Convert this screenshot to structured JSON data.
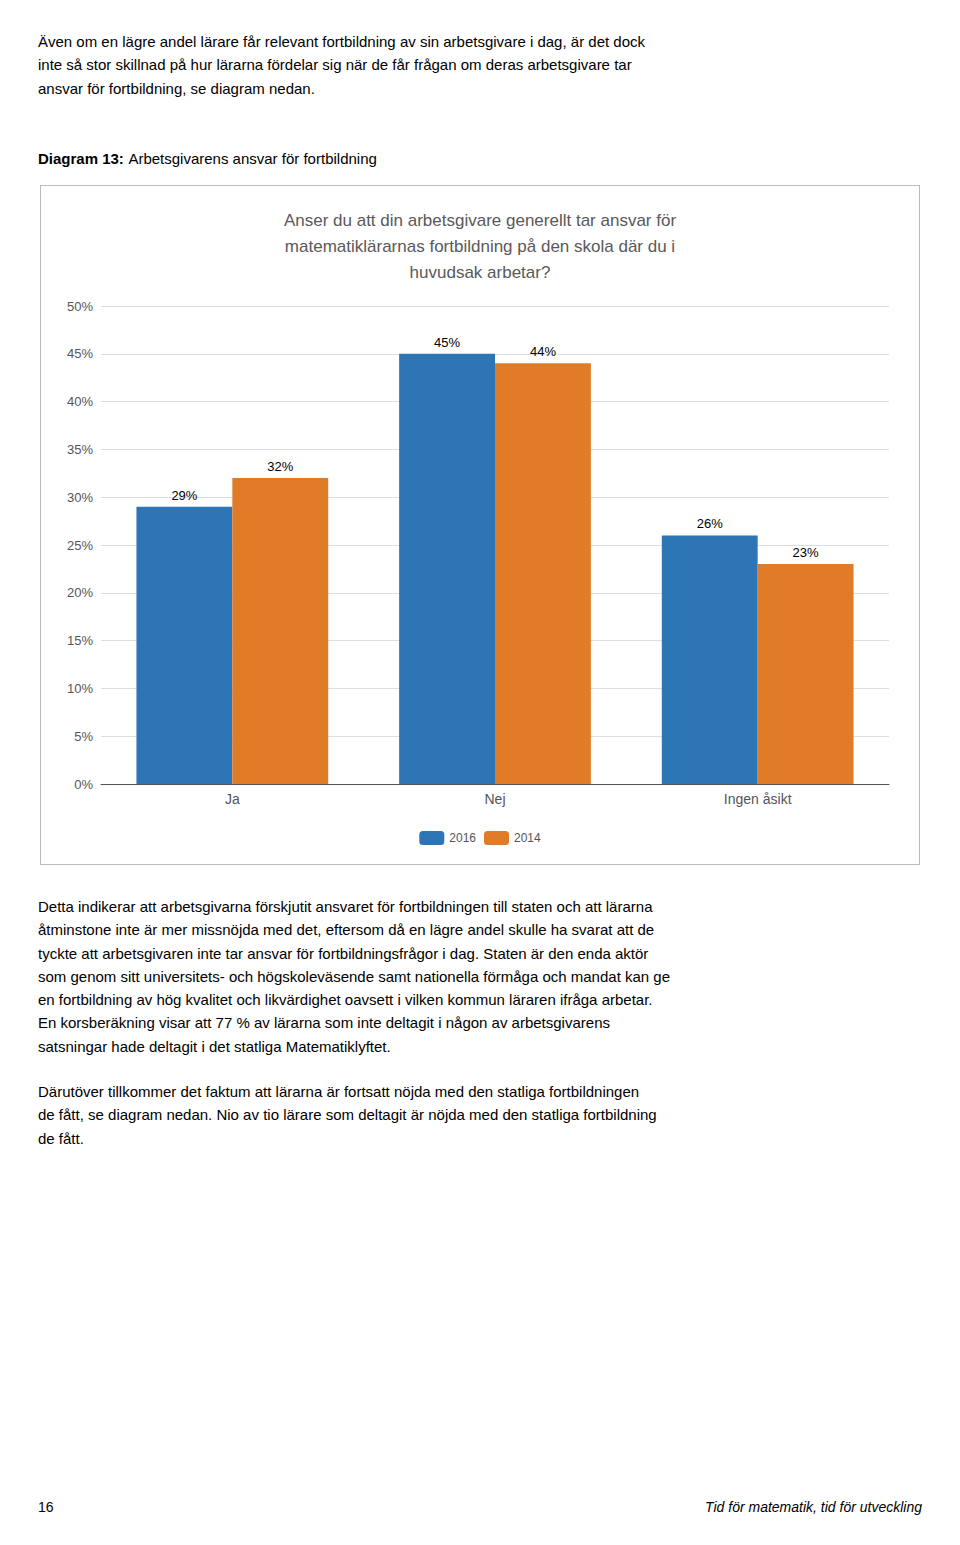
{
  "chart_data": {
    "type": "bar",
    "title": "Anser du att din arbetsgivare generellt tar ansvar för\nmatematiklärarnas fortbildning på den skola där du i\nhuvudsak arbetar?",
    "categories": [
      "Ja",
      "Nej",
      "Ingen åsikt"
    ],
    "series": [
      {
        "name": "2016",
        "color": "#2E75B6",
        "values": [
          29,
          45,
          26
        ],
        "value_labels": [
          "29%",
          "45%",
          "26%"
        ]
      },
      {
        "name": "2014",
        "color": "#E07B27",
        "values": [
          32,
          44,
          23
        ],
        "value_labels": [
          "32%",
          "44%",
          "23%"
        ]
      }
    ],
    "ylim": [
      0,
      50
    ],
    "yticks": [
      {
        "value": 0,
        "label": "0%"
      },
      {
        "value": 5,
        "label": "5%"
      },
      {
        "value": 10,
        "label": "10%"
      },
      {
        "value": 15,
        "label": "15%"
      },
      {
        "value": 20,
        "label": "20%"
      },
      {
        "value": 25,
        "label": "25%"
      },
      {
        "value": 30,
        "label": "30%"
      },
      {
        "value": 35,
        "label": "35%"
      },
      {
        "value": 40,
        "label": "40%"
      },
      {
        "value": 45,
        "label": "45%"
      },
      {
        "value": 50,
        "label": "50%"
      }
    ],
    "grid": true,
    "legend": "bottom",
    "data_labels": true,
    "annotations": [
      "Även om en lägre andel lärare får relevant fortbildning av sin arbetsgivare i dag, är det dock\ninte så stor skillnad på hur lärarna fördelar sig när de får frågan om deras arbetsgivare tar\nansvar för fortbildning, se diagram nedan.",
      "Diagram 13:",
      "Arbetsgivarens ansvar för fortbildning",
      "Detta indikerar att arbetsgivarna förskjutit ansvaret för fortbildningen till staten och att lärarna\nåtminstone inte är mer missnöjda med det, eftersom då en lägre andel skulle ha svarat att de\ntyckte att arbetsgivaren inte tar ansvar för fortbildningsfrågor i dag. Staten är den enda aktör\nsom genom sitt universitets- och högskoleväsende samt nationella förmåga och mandat kan ge\nen fortbildning av hög kvalitet och likvärdighet oavsett i vilken kommun läraren ifråga arbetar.\nEn korsberäkning visar att 77 % av lärarna som inte deltagit i någon av arbetsgivarens\nsatsningar hade deltagit i det statliga Matematiklyftet.",
      "Därutöver tillkommer det faktum att lärarna är fortsatt nöjda med den statliga fortbildningen\nde fått, se diagram nedan. Nio av tio lärare som deltagit är nöjda med den statliga fortbildning\nde fått.",
      "16",
      "Tid för matematik, tid för utveckling"
    ]
  }
}
